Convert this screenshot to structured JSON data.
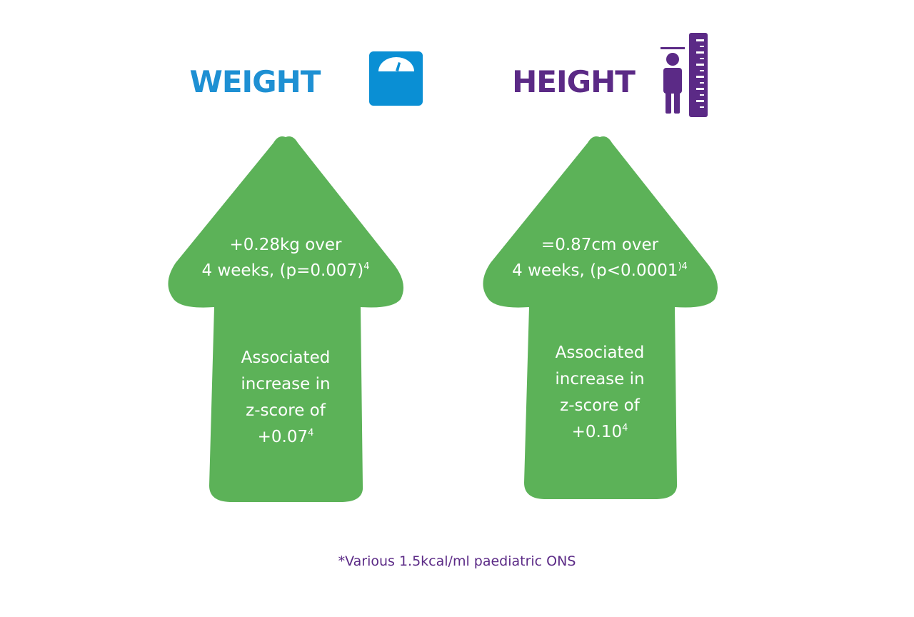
{
  "panels": [
    {
      "title": "WEIGHT",
      "top_lines": [
        {
          "text": "+0.28kg over"
        },
        {
          "text": "4 weeks, (p=0.007)",
          "sup": "4"
        }
      ],
      "bottom_lines": [
        {
          "text": "Associated"
        },
        {
          "text": "increase in"
        },
        {
          "text": "z-score of"
        },
        {
          "text": "+0.07",
          "sup": "4"
        }
      ]
    },
    {
      "title": "HEIGHT",
      "top_lines": [
        {
          "text": "=0.87cm over"
        },
        {
          "text": "4 weeks, (p<0.0001",
          "sup": ")4"
        }
      ],
      "bottom_lines": [
        {
          "text": "Associated"
        },
        {
          "text": "increase in"
        },
        {
          "text": "z-score of"
        },
        {
          "text": "+0.10",
          "sup": "4"
        }
      ]
    }
  ],
  "footnote": "*Various 1.5kcal/ml paediatric ONS"
}
